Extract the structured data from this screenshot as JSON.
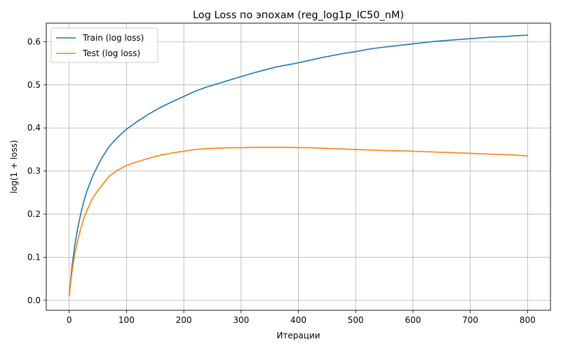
{
  "chart_data": {
    "type": "line",
    "title": "Log Loss по эпохам (reg_log1p_IC50_nM)",
    "xlabel": "Итерации",
    "ylabel": "log(1 + loss)",
    "xlim": [
      -40,
      840
    ],
    "ylim": [
      -0.023,
      0.643
    ],
    "xticks": [
      0,
      100,
      200,
      300,
      400,
      500,
      600,
      700,
      800
    ],
    "yticks": [
      0.0,
      0.1,
      0.2,
      0.3,
      0.4,
      0.5,
      0.6
    ],
    "xtick_labels": [
      "0",
      "100",
      "200",
      "300",
      "400",
      "500",
      "600",
      "700",
      "800"
    ],
    "ytick_labels": [
      "0.0",
      "0.1",
      "0.2",
      "0.3",
      "0.4",
      "0.5",
      "0.6"
    ],
    "grid": true,
    "legend_position": "top-left",
    "series": [
      {
        "name": "Train (log loss)",
        "color": "#1f77b4",
        "x": [
          0,
          5,
          10,
          15,
          20,
          25,
          30,
          40,
          50,
          60,
          70,
          80,
          90,
          100,
          120,
          140,
          160,
          180,
          200,
          220,
          240,
          260,
          280,
          300,
          320,
          340,
          360,
          380,
          400,
          420,
          440,
          460,
          480,
          500,
          520,
          540,
          560,
          580,
          600,
          620,
          640,
          660,
          680,
          700,
          720,
          740,
          760,
          780,
          800
        ],
        "y": [
          0.01,
          0.08,
          0.13,
          0.168,
          0.2,
          0.227,
          0.25,
          0.285,
          0.313,
          0.337,
          0.357,
          0.372,
          0.385,
          0.397,
          0.416,
          0.433,
          0.448,
          0.461,
          0.473,
          0.485,
          0.495,
          0.503,
          0.511,
          0.519,
          0.527,
          0.534,
          0.541,
          0.546,
          0.551,
          0.557,
          0.563,
          0.568,
          0.573,
          0.577,
          0.582,
          0.586,
          0.589,
          0.592,
          0.595,
          0.598,
          0.601,
          0.603,
          0.605,
          0.607,
          0.609,
          0.611,
          0.612,
          0.614,
          0.615
        ]
      },
      {
        "name": "Test (log loss)",
        "color": "#ff7f0e",
        "x": [
          0,
          5,
          10,
          15,
          20,
          25,
          30,
          40,
          50,
          60,
          70,
          80,
          90,
          100,
          120,
          140,
          160,
          180,
          200,
          220,
          240,
          260,
          280,
          300,
          320,
          340,
          360,
          380,
          400,
          420,
          440,
          460,
          480,
          500,
          520,
          540,
          560,
          580,
          600,
          620,
          640,
          660,
          680,
          700,
          720,
          740,
          760,
          780,
          800
        ],
        "y": [
          0.01,
          0.068,
          0.11,
          0.14,
          0.165,
          0.188,
          0.206,
          0.235,
          0.255,
          0.272,
          0.288,
          0.298,
          0.306,
          0.313,
          0.322,
          0.33,
          0.337,
          0.342,
          0.346,
          0.35,
          0.352,
          0.353,
          0.354,
          0.354,
          0.355,
          0.355,
          0.355,
          0.355,
          0.354,
          0.354,
          0.353,
          0.352,
          0.351,
          0.35,
          0.349,
          0.348,
          0.347,
          0.347,
          0.346,
          0.345,
          0.344,
          0.343,
          0.342,
          0.341,
          0.34,
          0.339,
          0.338,
          0.337,
          0.335
        ]
      }
    ]
  }
}
